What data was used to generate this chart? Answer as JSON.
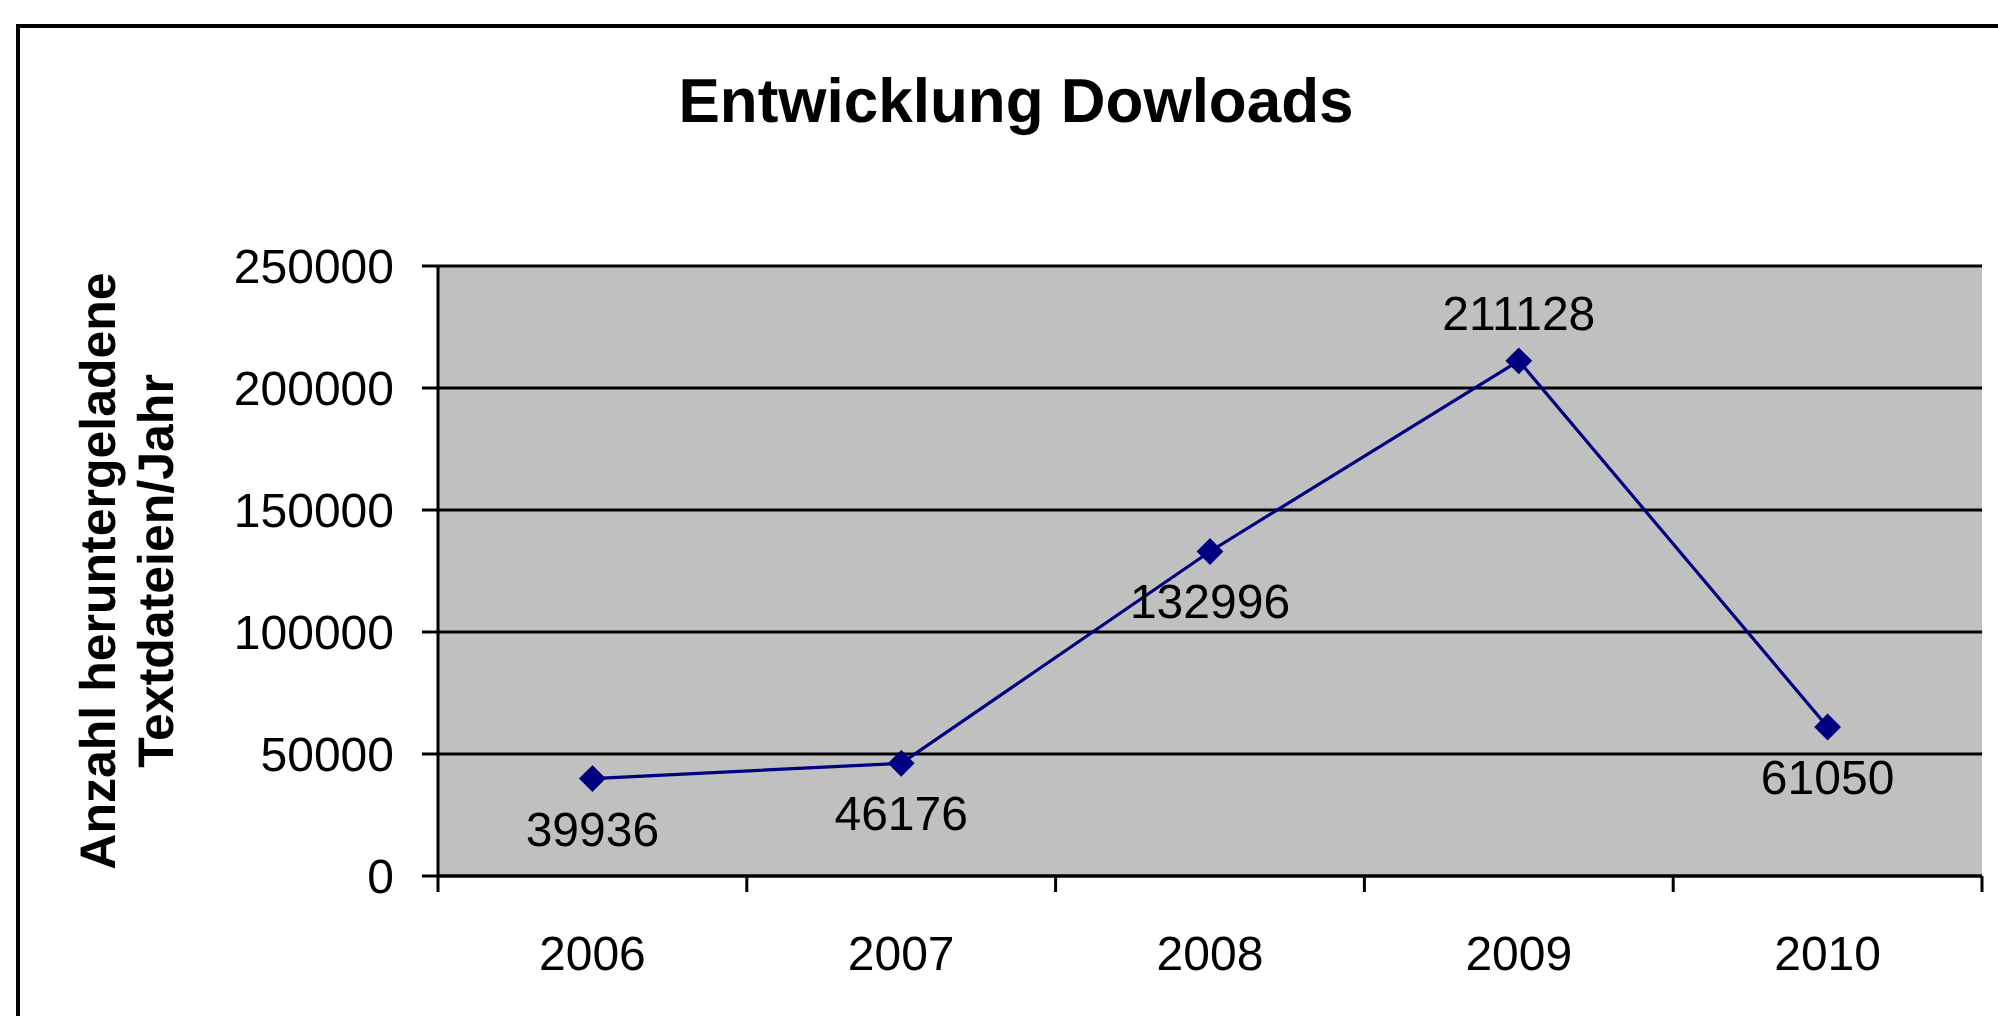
{
  "chart_data": {
    "type": "line",
    "title": "Entwicklung Dowloads",
    "ylabel": "Anzahl heruntergeladene Textdateien/Jahr",
    "categories": [
      "2006",
      "2007",
      "2008",
      "2009",
      "2010"
    ],
    "values": [
      39936,
      46176,
      132996,
      211128,
      61050
    ],
    "color": "#000080",
    "ylim": [
      0,
      250000
    ],
    "yticks": [
      0,
      50000,
      100000,
      150000,
      200000,
      250000
    ],
    "grid": "y",
    "marker": "diamond",
    "data_labels": true
  }
}
